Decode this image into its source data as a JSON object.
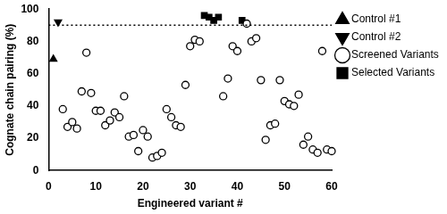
{
  "chart_data": {
    "type": "scatter",
    "x_label": "Engineered variant #",
    "y_label": "Cognate chain pairing (%)",
    "xlim": [
      0,
      60
    ],
    "xticks": [
      0,
      10,
      20,
      30,
      40,
      50,
      60
    ],
    "ylim": [
      0,
      100
    ],
    "yticks": [
      0,
      20,
      40,
      60,
      80,
      100
    ],
    "grid": false,
    "legend": "right",
    "threshold": 90,
    "series": [
      {
        "name": "Control #1",
        "color": "#000000",
        "marker": "triangle",
        "x": [
          1
        ],
        "values": [
          69
        ]
      },
      {
        "name": "Control #2",
        "color": "#000000",
        "marker": "triangle_down",
        "x": [
          2
        ],
        "values": [
          92
        ]
      },
      {
        "name": "Screened Variants",
        "color": "#000000",
        "marker": "circle_open",
        "x": [
          3,
          4,
          5,
          6,
          7,
          8,
          9,
          10,
          11,
          12,
          13,
          14,
          15,
          16,
          17,
          18,
          19,
          20,
          21,
          22,
          23,
          24,
          25,
          26,
          27,
          28,
          29,
          30,
          31,
          32,
          37,
          38,
          39,
          40,
          42,
          43,
          44,
          45,
          46,
          47,
          48,
          49,
          50,
          51,
          52,
          53,
          54,
          55,
          56,
          57,
          58,
          59,
          60
        ],
        "values": [
          38,
          27,
          30,
          26,
          49,
          73,
          48,
          37,
          37,
          28,
          31,
          36,
          33,
          46,
          21,
          22,
          12,
          25,
          21,
          8,
          9,
          11,
          38,
          33,
          28,
          27,
          53,
          77,
          81,
          80,
          46,
          57,
          77,
          74,
          91,
          80,
          82,
          56,
          19,
          28,
          29,
          56,
          43,
          41,
          40,
          47,
          16,
          21,
          13,
          11,
          74,
          13,
          12
        ]
      },
      {
        "name": "Selected Variants",
        "color": "#000000",
        "marker": "square",
        "x": [
          33,
          34,
          35,
          36,
          41
        ],
        "values": [
          96,
          95,
          93,
          95,
          93
        ]
      }
    ]
  }
}
